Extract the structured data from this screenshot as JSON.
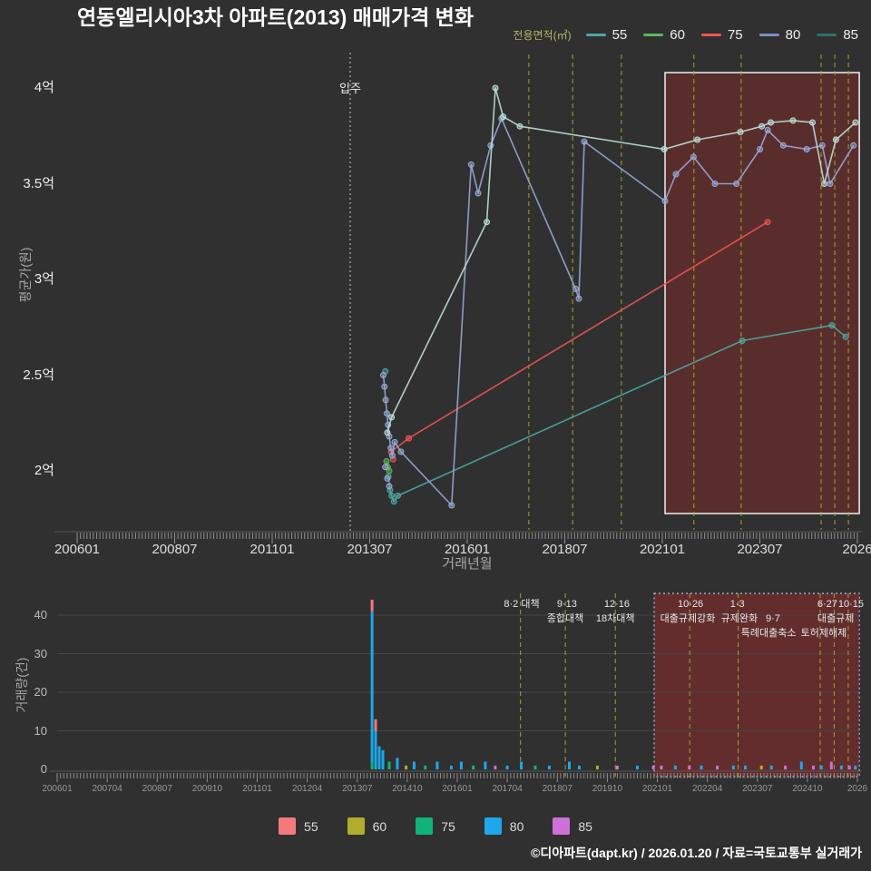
{
  "title": "연동엘리시아3차 아파트(2013) 매매가격 변화",
  "footer": "©디아파트(dapt.kr) / 2026.01.20 / 자료=국토교통부 실거래가",
  "legend_top": {
    "title": "전용면적(㎡)",
    "items": [
      {
        "label": "55",
        "color": "#4DA8A2"
      },
      {
        "label": "60",
        "color": "#5CB85C"
      },
      {
        "label": "75",
        "color": "#F05452"
      },
      {
        "label": "80",
        "color": "#7C8EC8"
      },
      {
        "label": "85",
        "color": "#27736C"
      }
    ]
  },
  "legend_bottom": {
    "items": [
      {
        "label": "55",
        "color": "#F4797D"
      },
      {
        "label": "60",
        "color": "#AFAD2B"
      },
      {
        "label": "75",
        "color": "#10B378"
      },
      {
        "label": "80",
        "color": "#1CA8EA"
      },
      {
        "label": "85",
        "color": "#CF70D8"
      }
    ]
  },
  "chart_data": [
    {
      "type": "line",
      "title": "연동엘리시아3차 아파트(2013) 매매가격 변화",
      "ylabel": "평균가(원)",
      "xlabel": "거래년월",
      "unit": "억",
      "xlim": [
        2005.5,
        2026.3
      ],
      "ylim": [
        1.75,
        4.12
      ],
      "grid": false,
      "legend_position": "top-right",
      "y_ticks": [
        {
          "label": "4억",
          "y": 4.0
        },
        {
          "label": "3.5억",
          "y": 3.5
        },
        {
          "label": "3억",
          "y": 3.0
        },
        {
          "label": "2.5억",
          "y": 2.5
        },
        {
          "label": "2억",
          "y": 2.0
        }
      ],
      "x_ticks": [
        {
          "label": "200601",
          "x": 2006.0
        },
        {
          "label": "200807",
          "x": 2008.5
        },
        {
          "label": "201101",
          "x": 2011.0
        },
        {
          "label": "201307",
          "x": 2013.5
        },
        {
          "label": "201601",
          "x": 2016.0
        },
        {
          "label": "201807",
          "x": 2018.5
        },
        {
          "label": "202101",
          "x": 2021.0
        },
        {
          "label": "202307",
          "x": 2023.5
        },
        {
          "label": "2026",
          "x": 2026.0
        }
      ],
      "move_in": {
        "label": "입주",
        "x": 2013.0
      },
      "highlight": {
        "x0": 2021.07,
        "x1": 2026.05
      },
      "policy_lines": [
        2017.58,
        2018.7,
        2019.95,
        2021.81,
        2023.02,
        2025.07,
        2025.42,
        2025.77
      ],
      "series": [
        {
          "name": "55",
          "color": "#4DA8A2",
          "points": [
            [
              2013.98,
              1.97
            ],
            [
              2014.02,
              1.9
            ],
            [
              2014.06,
              1.87
            ],
            [
              2014.12,
              1.84
            ],
            [
              2014.22,
              1.87
            ],
            [
              2023.05,
              2.68
            ],
            [
              2025.35,
              2.76
            ],
            [
              2025.7,
              2.7
            ]
          ],
          "scatter": [
            [
              2013.9,
              2.52
            ]
          ]
        },
        {
          "name": "60",
          "color": "#5CB85C",
          "points": [
            [
              2013.93,
              2.05
            ],
            [
              2014.0,
              2.0
            ]
          ],
          "scatter": [
            [
              2013.96,
              2.02
            ]
          ]
        },
        {
          "name": "75",
          "color": "#F05452",
          "points": [
            [
              2014.05,
              2.1
            ],
            [
              2014.5,
              2.17
            ],
            [
              2023.7,
              3.3
            ]
          ],
          "scatter": [
            [
              2014.1,
              2.06
            ]
          ]
        },
        {
          "name": "80",
          "color": "#98A9D6",
          "points": [
            [
              2013.85,
              2.5
            ],
            [
              2013.88,
              2.44
            ],
            [
              2013.91,
              2.37
            ],
            [
              2013.94,
              2.3
            ],
            [
              2013.97,
              2.24
            ],
            [
              2014.0,
              2.18
            ],
            [
              2014.04,
              2.12
            ],
            [
              2014.08,
              2.08
            ],
            [
              2014.14,
              2.15
            ],
            [
              2014.3,
              2.1
            ],
            [
              2015.6,
              1.82
            ],
            [
              2016.1,
              3.6
            ],
            [
              2016.28,
              3.45
            ],
            [
              2016.6,
              3.7
            ],
            [
              2016.88,
              3.84
            ],
            [
              2018.78,
              2.95
            ],
            [
              2018.86,
              2.9
            ],
            [
              2019.0,
              3.72
            ],
            [
              2021.07,
              3.41
            ],
            [
              2021.35,
              3.55
            ],
            [
              2021.8,
              3.64
            ],
            [
              2022.35,
              3.5
            ],
            [
              2022.9,
              3.5
            ],
            [
              2023.5,
              3.68
            ],
            [
              2023.7,
              3.78
            ],
            [
              2024.1,
              3.7
            ],
            [
              2024.7,
              3.68
            ],
            [
              2025.1,
              3.7
            ],
            [
              2025.3,
              3.5
            ],
            [
              2025.9,
              3.7
            ]
          ],
          "scatter": [
            [
              2013.9,
              2.02
            ],
            [
              2013.95,
              1.96
            ],
            [
              2014.0,
              1.92
            ]
          ]
        },
        {
          "name": "85",
          "color": "#BCE0D8",
          "points": [
            [
              2013.95,
              2.2
            ],
            [
              2014.06,
              2.28
            ],
            [
              2016.5,
              3.3
            ],
            [
              2016.72,
              4.0
            ],
            [
              2016.92,
              3.85
            ],
            [
              2017.35,
              3.8
            ],
            [
              2021.05,
              3.68
            ],
            [
              2021.9,
              3.73
            ],
            [
              2023.0,
              3.77
            ],
            [
              2023.55,
              3.8
            ],
            [
              2023.78,
              3.82
            ],
            [
              2024.35,
              3.83
            ],
            [
              2024.85,
              3.82
            ],
            [
              2025.15,
              3.5
            ],
            [
              2025.45,
              3.73
            ],
            [
              2025.95,
              3.82
            ]
          ],
          "scatter": []
        }
      ]
    },
    {
      "type": "bar",
      "ylabel": "거래량(건)",
      "ylim": [
        0,
        45
      ],
      "y_ticks": [
        0,
        10,
        20,
        30,
        40
      ],
      "x_ticks": [
        {
          "label": "200601",
          "x": 2006.0
        },
        {
          "label": "200704",
          "x": 2007.25
        },
        {
          "label": "200807",
          "x": 2008.5
        },
        {
          "label": "200910",
          "x": 2009.75
        },
        {
          "label": "201101",
          "x": 2011.0
        },
        {
          "label": "201204",
          "x": 2012.25
        },
        {
          "label": "201307",
          "x": 2013.5
        },
        {
          "label": "201410",
          "x": 2014.75
        },
        {
          "label": "201601",
          "x": 2016.0
        },
        {
          "label": "201704",
          "x": 2017.25
        },
        {
          "label": "201807",
          "x": 2018.5
        },
        {
          "label": "201910",
          "x": 2019.75
        },
        {
          "label": "202101",
          "x": 2021.0
        },
        {
          "label": "202204",
          "x": 2022.25
        },
        {
          "label": "202307",
          "x": 2023.5
        },
        {
          "label": "202410",
          "x": 2024.75
        },
        {
          "label": "2026",
          "x": 2026.0
        }
      ],
      "highlight": {
        "x0": 2020.92,
        "x1": 2026.05
      },
      "policy_lines": [
        2017.58,
        2018.7,
        2019.95,
        2021.81,
        2023.02,
        2025.07,
        2025.42,
        2025.77
      ],
      "annotations": [
        {
          "text": "8·2 대책",
          "x": 2017.61,
          "row": 0
        },
        {
          "text": "9·13",
          "x": 2018.74,
          "row": 0
        },
        {
          "text": "종합대책",
          "x": 2018.7,
          "row": 1
        },
        {
          "text": "12·16",
          "x": 2019.99,
          "row": 0
        },
        {
          "text": "18차대책",
          "x": 2019.95,
          "row": 1
        },
        {
          "text": "10·26",
          "x": 2021.83,
          "row": 0
        },
        {
          "text": "대출규제강화",
          "x": 2021.76,
          "row": 1
        },
        {
          "text": "1·3",
          "x": 2023.0,
          "row": 0
        },
        {
          "text": "규제완화",
          "x": 2023.05,
          "row": 1
        },
        {
          "text": "9·7",
          "x": 2023.89,
          "row": 1
        },
        {
          "text": "특례대출축소",
          "x": 2023.78,
          "row": 2
        },
        {
          "text": "6·27",
          "x": 2025.25,
          "row": 0
        },
        {
          "text": "10·15",
          "x": 2025.84,
          "row": 0
        },
        {
          "text": "대출규제",
          "x": 2025.46,
          "row": 1
        },
        {
          "text": "토허제해제",
          "x": 2025.16,
          "row": 2
        }
      ],
      "bars": [
        {
          "x": 2013.87,
          "segments": [
            [
              "75",
              2
            ],
            [
              "80",
              39
            ],
            [
              "55",
              3
            ]
          ]
        },
        {
          "x": 2013.96,
          "segments": [
            [
              "80",
              10
            ],
            [
              "55",
              3
            ]
          ]
        },
        {
          "x": 2014.05,
          "segments": [
            [
              "80",
              6
            ]
          ]
        },
        {
          "x": 2014.14,
          "segments": [
            [
              "80",
              5
            ]
          ]
        },
        {
          "x": 2014.3,
          "segments": [
            [
              "75",
              2
            ]
          ]
        },
        {
          "x": 2014.5,
          "segments": [
            [
              "80",
              3
            ]
          ]
        },
        {
          "x": 2014.72,
          "segments": [
            [
              "60",
              1
            ]
          ]
        },
        {
          "x": 2014.92,
          "segments": [
            [
              "80",
              2
            ]
          ]
        },
        {
          "x": 2015.2,
          "segments": [
            [
              "75",
              1
            ]
          ]
        },
        {
          "x": 2015.5,
          "segments": [
            [
              "80",
              2
            ]
          ]
        },
        {
          "x": 2015.85,
          "segments": [
            [
              "80",
              1
            ]
          ]
        },
        {
          "x": 2016.1,
          "segments": [
            [
              "80",
              2
            ]
          ]
        },
        {
          "x": 2016.4,
          "segments": [
            [
              "75",
              1
            ]
          ]
        },
        {
          "x": 2016.7,
          "segments": [
            [
              "80",
              2
            ]
          ]
        },
        {
          "x": 2016.95,
          "segments": [
            [
              "85",
              1
            ]
          ]
        },
        {
          "x": 2017.25,
          "segments": [
            [
              "80",
              1
            ]
          ]
        },
        {
          "x": 2017.6,
          "segments": [
            [
              "80",
              2
            ]
          ]
        },
        {
          "x": 2017.95,
          "segments": [
            [
              "75",
              1
            ]
          ]
        },
        {
          "x": 2018.3,
          "segments": [
            [
              "80",
              1
            ]
          ]
        },
        {
          "x": 2018.8,
          "segments": [
            [
              "80",
              2
            ]
          ]
        },
        {
          "x": 2019.05,
          "segments": [
            [
              "80",
              1
            ]
          ]
        },
        {
          "x": 2019.5,
          "segments": [
            [
              "60",
              1
            ]
          ]
        },
        {
          "x": 2020.0,
          "segments": [
            [
              "85",
              1
            ]
          ]
        },
        {
          "x": 2020.5,
          "segments": [
            [
              "80",
              1
            ]
          ]
        },
        {
          "x": 2020.9,
          "segments": [
            [
              "85",
              1
            ]
          ]
        },
        {
          "x": 2021.1,
          "segments": [
            [
              "85",
              1
            ]
          ]
        },
        {
          "x": 2021.45,
          "segments": [
            [
              "80",
              1
            ]
          ]
        },
        {
          "x": 2021.8,
          "segments": [
            [
              "85",
              1
            ]
          ]
        },
        {
          "x": 2022.1,
          "segments": [
            [
              "80",
              1
            ]
          ]
        },
        {
          "x": 2022.5,
          "segments": [
            [
              "85",
              1
            ]
          ]
        },
        {
          "x": 2022.9,
          "segments": [
            [
              "80",
              1
            ]
          ]
        },
        {
          "x": 2023.2,
          "segments": [
            [
              "80",
              1
            ]
          ]
        },
        {
          "x": 2023.6,
          "segments": [
            [
              "60",
              1
            ]
          ]
        },
        {
          "x": 2023.85,
          "segments": [
            [
              "80",
              1
            ]
          ]
        },
        {
          "x": 2024.2,
          "segments": [
            [
              "85",
              1
            ]
          ]
        },
        {
          "x": 2024.6,
          "segments": [
            [
              "80",
              2
            ]
          ]
        },
        {
          "x": 2024.9,
          "segments": [
            [
              "85",
              1
            ]
          ]
        },
        {
          "x": 2025.1,
          "segments": [
            [
              "80",
              1
            ]
          ]
        },
        {
          "x": 2025.35,
          "segments": [
            [
              "85",
              2
            ]
          ]
        },
        {
          "x": 2025.6,
          "segments": [
            [
              "80",
              1
            ]
          ]
        },
        {
          "x": 2025.8,
          "segments": [
            [
              "85",
              1
            ]
          ]
        },
        {
          "x": 2025.95,
          "segments": [
            [
              "80",
              1
            ]
          ]
        }
      ]
    }
  ]
}
